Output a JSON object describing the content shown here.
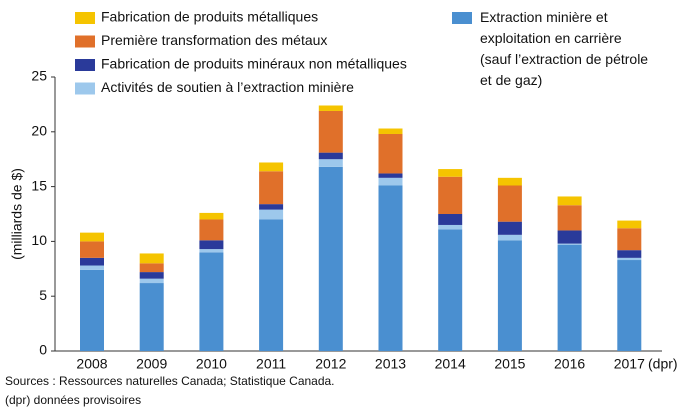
{
  "chart_data": {
    "type": "stacked_bar",
    "y_label": "(milliards de $)",
    "x_note": "(dpr)",
    "categories": [
      "2008",
      "2009",
      "2010",
      "2011",
      "2012",
      "2013",
      "2014",
      "2015",
      "2016",
      "2017"
    ],
    "series": [
      {
        "name": "Extraction minière et\nexploitation en carrière\n(sauf l’extraction de pétrole\net de gaz)",
        "color": "#4a8fd0",
        "values": [
          7.4,
          6.2,
          9.0,
          12.0,
          16.8,
          15.1,
          11.1,
          10.1,
          9.7,
          8.3
        ]
      },
      {
        "name": "Activités de soutien à l’extraction minière",
        "color": "#9dc8ec",
        "values": [
          0.4,
          0.4,
          0.3,
          0.9,
          0.7,
          0.7,
          0.4,
          0.5,
          0.1,
          0.2
        ]
      },
      {
        "name": "Fabrication de produits minéraux non métalliques",
        "color": "#2a3a9a",
        "values": [
          0.7,
          0.6,
          0.8,
          0.5,
          0.6,
          0.4,
          1.0,
          1.2,
          1.2,
          0.7
        ]
      },
      {
        "name": "Première transformation des métaux",
        "color": "#e0702a",
        "values": [
          1.5,
          0.8,
          1.9,
          3.0,
          3.8,
          3.6,
          3.4,
          3.3,
          2.3,
          2.0
        ]
      },
      {
        "name": "Fabrication de produits métalliques",
        "color": "#f5c400",
        "values": [
          0.8,
          0.9,
          0.6,
          0.8,
          0.5,
          0.5,
          0.7,
          0.7,
          0.8,
          0.7
        ]
      }
    ],
    "ylim": [
      0,
      25
    ],
    "yticks": [
      0,
      5,
      10,
      15,
      20,
      25
    ],
    "footnotes": [
      "Sources : Ressources naturelles Canada; Statistique Canada.",
      "(dpr) données provisoires"
    ]
  }
}
